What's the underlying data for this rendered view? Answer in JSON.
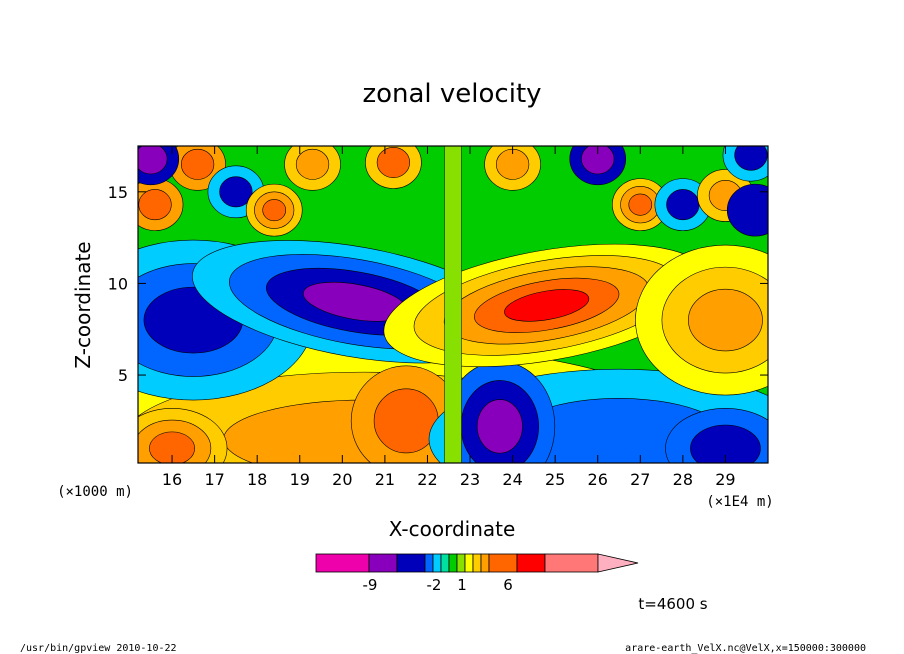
{
  "chart_data": {
    "type": "heatmap",
    "title": "zonal velocity",
    "xlabel": "X-coordinate",
    "ylabel": "Z-coordinate",
    "x_unit_left": "(×1000 m)",
    "x_unit_right": "(×1E4 m)",
    "xlim": [
      15.2,
      30.0
    ],
    "ylim": [
      0.2,
      17.5
    ],
    "x_ticks": [
      "16",
      "17",
      "18",
      "19",
      "20",
      "21",
      "22",
      "23",
      "24",
      "25",
      "26",
      "27",
      "28",
      "29"
    ],
    "y_ticks": [
      "5",
      "10",
      "15"
    ],
    "colorbar": {
      "labels": [
        "-9",
        "-2",
        "1",
        "6"
      ],
      "colors": [
        "#ee00aa",
        "#8800bb",
        "#0000bb",
        "#0066ff",
        "#00ccff",
        "#00e0a0",
        "#00cc00",
        "#88e000",
        "#ffff00",
        "#ffcc00",
        "#ffa000",
        "#ff6600",
        "#ff0000",
        "#ff7777",
        "#ffb0c0"
      ]
    },
    "time_label": "t=4600 s"
  },
  "footer": {
    "left": "/usr/bin/gpview   2010-10-22",
    "right": "arare-earth_VelX.nc@VelX,x=150000:300000"
  }
}
